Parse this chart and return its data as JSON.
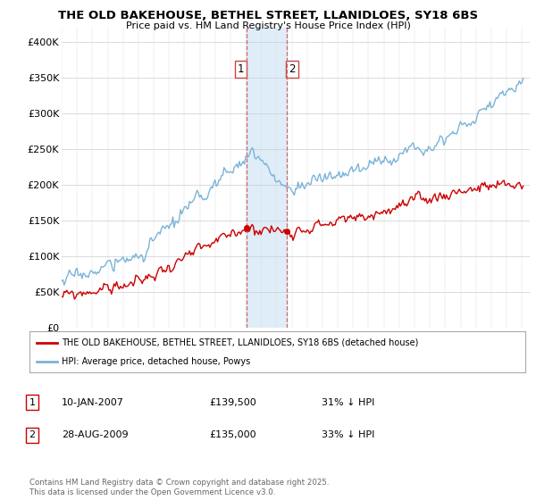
{
  "title": "THE OLD BAKEHOUSE, BETHEL STREET, LLANIDLOES, SY18 6BS",
  "subtitle": "Price paid vs. HM Land Registry's House Price Index (HPI)",
  "legend_line1": "THE OLD BAKEHOUSE, BETHEL STREET, LLANIDLOES, SY18 6BS (detached house)",
  "legend_line2": "HPI: Average price, detached house, Powys",
  "transaction1_date": "10-JAN-2007",
  "transaction1_price": "£139,500",
  "transaction1_hpi": "31% ↓ HPI",
  "transaction2_date": "28-AUG-2009",
  "transaction2_price": "£135,000",
  "transaction2_hpi": "33% ↓ HPI",
  "copyright": "Contains HM Land Registry data © Crown copyright and database right 2025.\nThis data is licensed under the Open Government Licence v3.0.",
  "ylim": [
    0,
    420000
  ],
  "yticks": [
    0,
    50000,
    100000,
    150000,
    200000,
    250000,
    300000,
    350000,
    400000
  ],
  "ytick_labels": [
    "£0",
    "£50K",
    "£100K",
    "£150K",
    "£200K",
    "£250K",
    "£300K",
    "£350K",
    "£400K"
  ],
  "hpi_color": "#7ab4d8",
  "price_color": "#cc0000",
  "background_color": "#ffffff",
  "shaded_color": "#daeaf7",
  "vline_color": "#cc6666",
  "shaded_region": [
    2007.03,
    2009.67
  ],
  "vline_x1": 2007.03,
  "vline_x2": 2009.67,
  "marker1_year": 2007.03,
  "marker1_value": 139500,
  "marker2_year": 2009.67,
  "marker2_value": 135000,
  "xlim_start": 1995,
  "xlim_end": 2025.5
}
